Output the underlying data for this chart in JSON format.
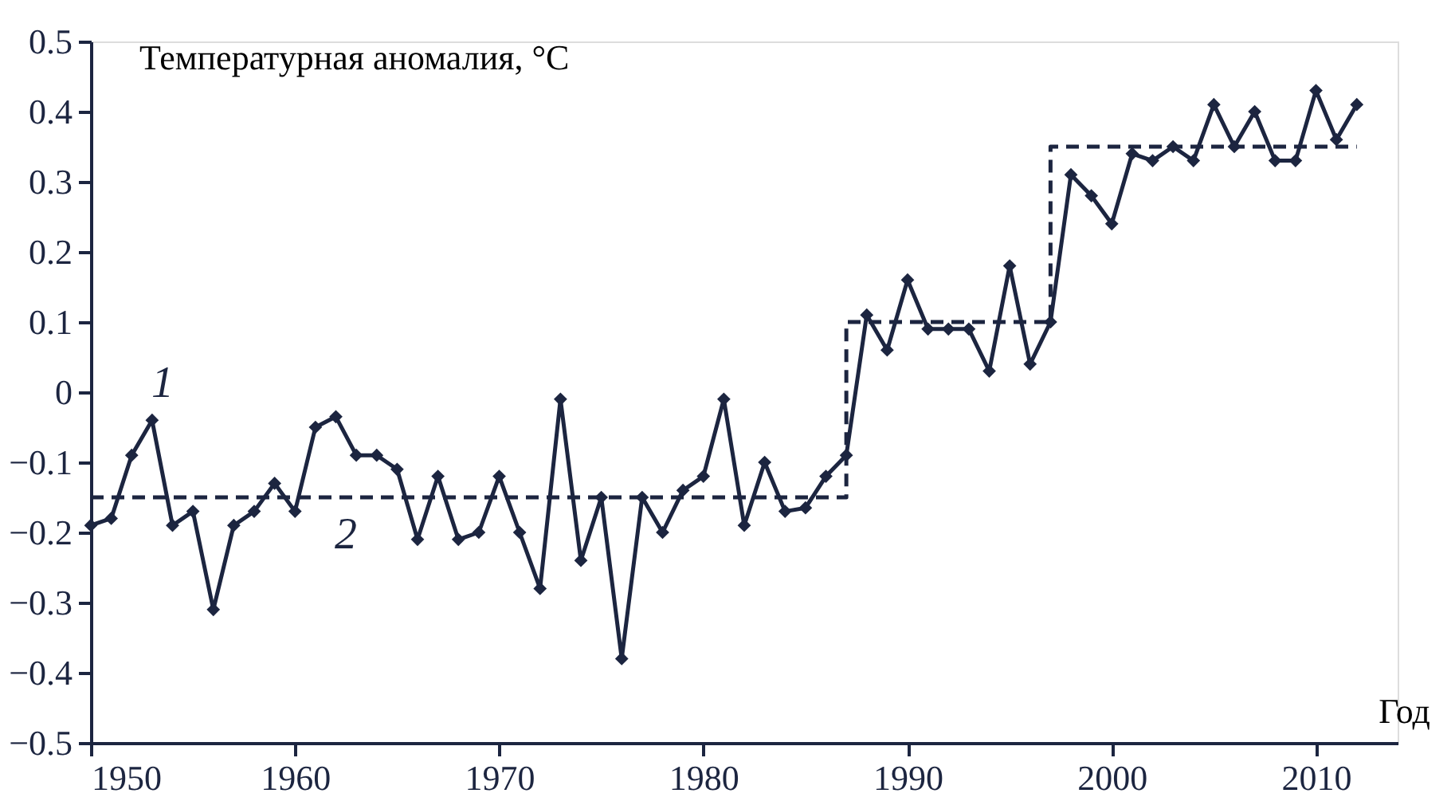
{
  "chart_data": {
    "type": "line",
    "ylabel": "Температурная аномалия, °C",
    "xlabel": "Год",
    "x": [
      1950,
      1951,
      1952,
      1953,
      1954,
      1955,
      1956,
      1957,
      1958,
      1959,
      1960,
      1961,
      1962,
      1963,
      1964,
      1965,
      1966,
      1967,
      1968,
      1969,
      1970,
      1971,
      1972,
      1973,
      1974,
      1975,
      1976,
      1977,
      1978,
      1979,
      1980,
      1981,
      1982,
      1983,
      1984,
      1985,
      1986,
      1987,
      1988,
      1989,
      1990,
      1991,
      1992,
      1993,
      1994,
      1995,
      1996,
      1997,
      1998,
      1999,
      2000,
      2001,
      2002,
      2003,
      2004,
      2005,
      2006,
      2007,
      2008,
      2009,
      2010,
      2011,
      2012
    ],
    "series": [
      {
        "color": "#1c2540",
        "marker": "diamond",
        "line_style": "solid",
        "values": [
          -0.19,
          -0.18,
          -0.09,
          -0.04,
          -0.19,
          -0.17,
          -0.31,
          -0.19,
          -0.17,
          -0.13,
          -0.17,
          -0.05,
          -0.035,
          -0.09,
          -0.09,
          -0.11,
          -0.21,
          -0.12,
          -0.21,
          -0.2,
          -0.12,
          -0.2,
          -0.28,
          -0.01,
          -0.24,
          -0.15,
          -0.38,
          -0.15,
          -0.2,
          -0.14,
          -0.12,
          -0.01,
          -0.19,
          -0.1,
          -0.17,
          -0.165,
          -0.12,
          -0.09,
          0.11,
          0.06,
          0.16,
          0.09,
          0.09,
          0.09,
          0.03,
          0.18,
          0.04,
          0.1,
          0.31,
          0.28,
          0.24,
          0.34,
          0.33,
          0.35,
          0.33,
          0.41,
          0.35,
          0.4,
          0.33,
          0.33,
          0.43,
          0.36,
          0.41
        ]
      },
      {
        "color": "#1c2540",
        "marker": "none",
        "line_style": "dashed",
        "x": [
          1950,
          1987,
          1987,
          1997,
          1997,
          2012
        ],
        "values": [
          -0.15,
          -0.15,
          0.1,
          0.1,
          0.35,
          0.35
        ]
      }
    ],
    "annotations": [
      "1",
      "2"
    ],
    "xlim": [
      1950,
      2014
    ],
    "xticks": [
      1950,
      1960,
      1970,
      1980,
      1990,
      2000,
      2010
    ],
    "ylim": [
      -0.5,
      0.5
    ],
    "yticks": [
      -0.5,
      -0.4,
      -0.3,
      -0.2,
      -0.1,
      0,
      0.1,
      0.2,
      0.3,
      0.4,
      0.5
    ],
    "grid": false
  }
}
